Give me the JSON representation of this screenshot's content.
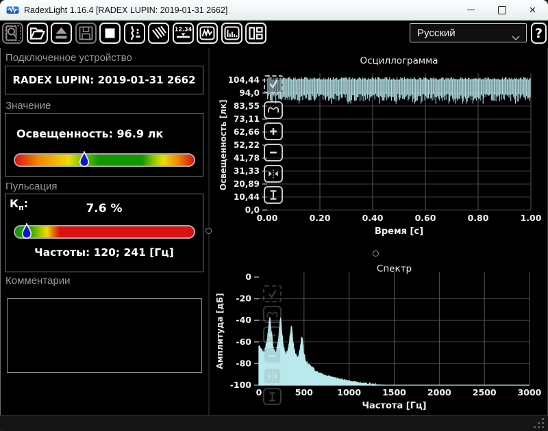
{
  "window": {
    "title": "RadexLight 1.16.4 [RADEX LUPIN: 2019-01-31 2662]"
  },
  "toolbar": {
    "language_value": "Русский",
    "help_label": "?",
    "buttons": [
      {
        "name": "preview",
        "icon": "magnifier-document-icon",
        "disabled": true,
        "focused": true
      },
      {
        "name": "open-file",
        "icon": "open-folder-icon",
        "disabled": false
      },
      {
        "name": "eject-device",
        "icon": "eject-icon",
        "disabled": false,
        "glyph_dim": true
      },
      {
        "name": "save-file",
        "icon": "floppy-icon",
        "disabled": true
      },
      {
        "name": "stop-measurement",
        "icon": "stop-square-icon",
        "disabled": false
      },
      {
        "name": "pulsation-mode",
        "icon": "pulse-waveform-icon",
        "disabled": false
      },
      {
        "name": "hatch-mode",
        "icon": "diagonal-lines-icon",
        "disabled": false
      },
      {
        "name": "digital-display-view",
        "icon": "digital-display-icon",
        "disabled": false
      },
      {
        "name": "oscillogram-view",
        "icon": "wave-chart-icon",
        "disabled": false
      },
      {
        "name": "spectrum-view",
        "icon": "bar-chart-icon",
        "disabled": false
      },
      {
        "name": "layout-view",
        "icon": "panels-layout-icon",
        "disabled": false
      }
    ]
  },
  "device_panel": {
    "label": "Подключенное устройство",
    "device": "RADEX LUPIN: 2019-01-31 2662"
  },
  "value_panel": {
    "label": "Значение",
    "reading": "Освещенность: 96.9 лк",
    "marker_pct": 39,
    "scale_stops": [
      "#dd1111 0%",
      "#ee8800 13%",
      "#eedd00 30%",
      "#66bb00 39%",
      "#0f9900 47%",
      "#0f9900 71%",
      "#99cc00 78%",
      "#eedd00 83%",
      "#ee8800 91%",
      "#dd1111 100%"
    ]
  },
  "pulsation_panel": {
    "label": "Пульсация",
    "kp_base": "К",
    "kp_sub": "п",
    "kp_colon": ":",
    "kp_value": "7.6 %",
    "frequencies": "Частоты: 120; 241 [Гц]",
    "marker_pct": 7,
    "scale_stops": [
      "#0f9900 0%",
      "#33aa00 9%",
      "#bbcc00 15%",
      "#eedd00 18%",
      "#ee7700 21%",
      "#dd1111 25%",
      "#dd1111 100%"
    ]
  },
  "comments_panel": {
    "label": "Комментарии",
    "text": ""
  },
  "chart_tools": [
    {
      "name": "trace-visible",
      "icon": "checkbox-checked-icon"
    },
    {
      "name": "autoscale",
      "icon": "autoscale-curve-icon"
    },
    {
      "name": "zoom-in",
      "icon": "plus-icon"
    },
    {
      "name": "zoom-out",
      "icon": "minus-icon"
    },
    {
      "name": "fit-horizontal",
      "icon": "fit-horizontal-icon"
    },
    {
      "name": "fit-vertical",
      "icon": "fit-vertical-icon"
    }
  ],
  "colors": {
    "trace": "#b9e9ec",
    "grid_h": "#3f3f3f",
    "grid_v": "#575757",
    "marker_fill": "#1016c8",
    "accent_text": "#ffffff"
  },
  "chart_data": [
    {
      "type": "line",
      "id": "oscillogram",
      "title": "Осциллограмма",
      "xlabel": "Время [с]",
      "ylabel": "Освещенность [лк]",
      "xlim": [
        0,
        1.0
      ],
      "ylim": [
        0,
        104.44
      ],
      "x_tick_labels": [
        "0.00",
        "0.20",
        "0.40",
        "0.60",
        "0.80",
        "1.00"
      ],
      "y_tick_labels": [
        "104,44",
        "94,0",
        "83,55",
        "73,11",
        "62,66",
        "52,22",
        "41,78",
        "31,33",
        "20,89",
        "10,44",
        "0,0"
      ],
      "grid": true,
      "legend": "none",
      "series": [
        {
          "name": "illuminance-flicker-band",
          "color": "#b9e9ec",
          "description": "dense 120 Hz flicker waveform filling 0..1 s",
          "mean_lux": 96.9,
          "band_top_lux_range": [
            104.6,
            106.8
          ],
          "band_bottom_lux_range": [
            87.0,
            93.5
          ]
        }
      ]
    },
    {
      "type": "area",
      "id": "spectrum",
      "title": "Спектр",
      "xlabel": "Частота [Гц]",
      "ylabel": "Амплитуда [дБ]",
      "xlim": [
        0,
        3000
      ],
      "ylim": [
        -100,
        0
      ],
      "x_tick_labels": [
        "0",
        "500",
        "1000",
        "1500",
        "2000",
        "2500",
        "3000"
      ],
      "y_tick_labels": [
        "0",
        "-20",
        "-40",
        "-60",
        "-80",
        "-100"
      ],
      "grid": true,
      "legend": "none",
      "series": [
        {
          "name": "amplitude-spectrum",
          "color": "#b9e9ec",
          "noise_db": 3,
          "anchors_hz_db": [
            [
              0,
              -64
            ],
            [
              30,
              -68
            ],
            [
              60,
              -71
            ],
            [
              90,
              -60
            ],
            [
              105,
              -48
            ],
            [
              120,
              -37
            ],
            [
              135,
              -50
            ],
            [
              160,
              -66
            ],
            [
              190,
              -71
            ],
            [
              215,
              -60
            ],
            [
              231,
              -46
            ],
            [
              241,
              -37
            ],
            [
              252,
              -50
            ],
            [
              275,
              -66
            ],
            [
              300,
              -73
            ],
            [
              330,
              -65
            ],
            [
              350,
              -52
            ],
            [
              362,
              -45
            ],
            [
              375,
              -60
            ],
            [
              400,
              -71
            ],
            [
              430,
              -76
            ],
            [
              455,
              -68
            ],
            [
              470,
              -58
            ],
            [
              481,
              -55
            ],
            [
              492,
              -68
            ],
            [
              520,
              -79
            ],
            [
              555,
              -82
            ],
            [
              585,
              -84
            ],
            [
              600,
              -83
            ],
            [
              620,
              -87
            ],
            [
              660,
              -89
            ],
            [
              720,
              -91
            ],
            [
              800,
              -93
            ],
            [
              900,
              -95
            ],
            [
              1000,
              -96.5
            ],
            [
              1100,
              -98
            ],
            [
              1250,
              -99.5
            ],
            [
              1400,
              -100
            ],
            [
              3000,
              -100
            ]
          ]
        }
      ]
    }
  ]
}
